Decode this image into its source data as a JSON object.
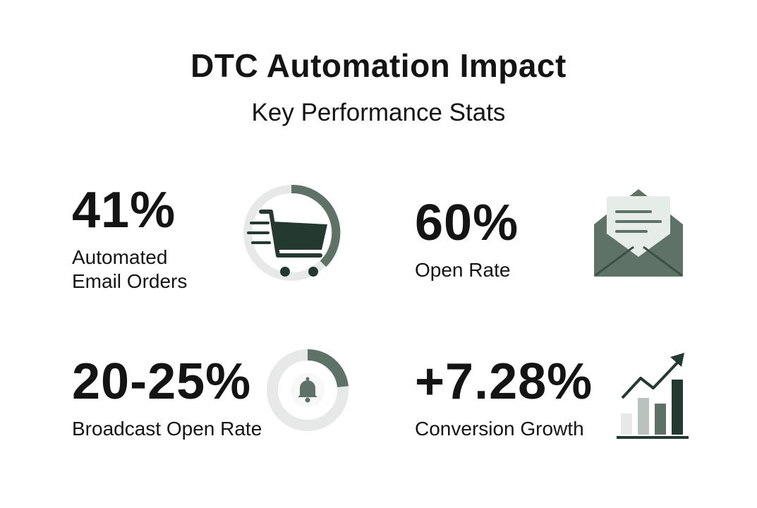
{
  "header": {
    "title": "DTC Automation Impact",
    "subtitle": "Key Performance Stats"
  },
  "colors": {
    "accent": "#5f7268",
    "accent_dark": "#243a30",
    "light": "#e6e9e7",
    "text": "#141414"
  },
  "stats": [
    {
      "value": "41%",
      "label_lines": [
        "Automated",
        "Email Orders"
      ],
      "icon": "shopping-cart-icon"
    },
    {
      "value": "60%",
      "label_lines": [
        "Open Rate"
      ],
      "icon": "open-envelope-icon"
    },
    {
      "value": "20-25%",
      "label_lines": [
        "Broadcast Open Rate"
      ],
      "icon": "bell-icon"
    },
    {
      "value": "+7.28%",
      "label_lines": [
        "Conversion Growth"
      ],
      "icon": "growth-chart-icon"
    }
  ]
}
